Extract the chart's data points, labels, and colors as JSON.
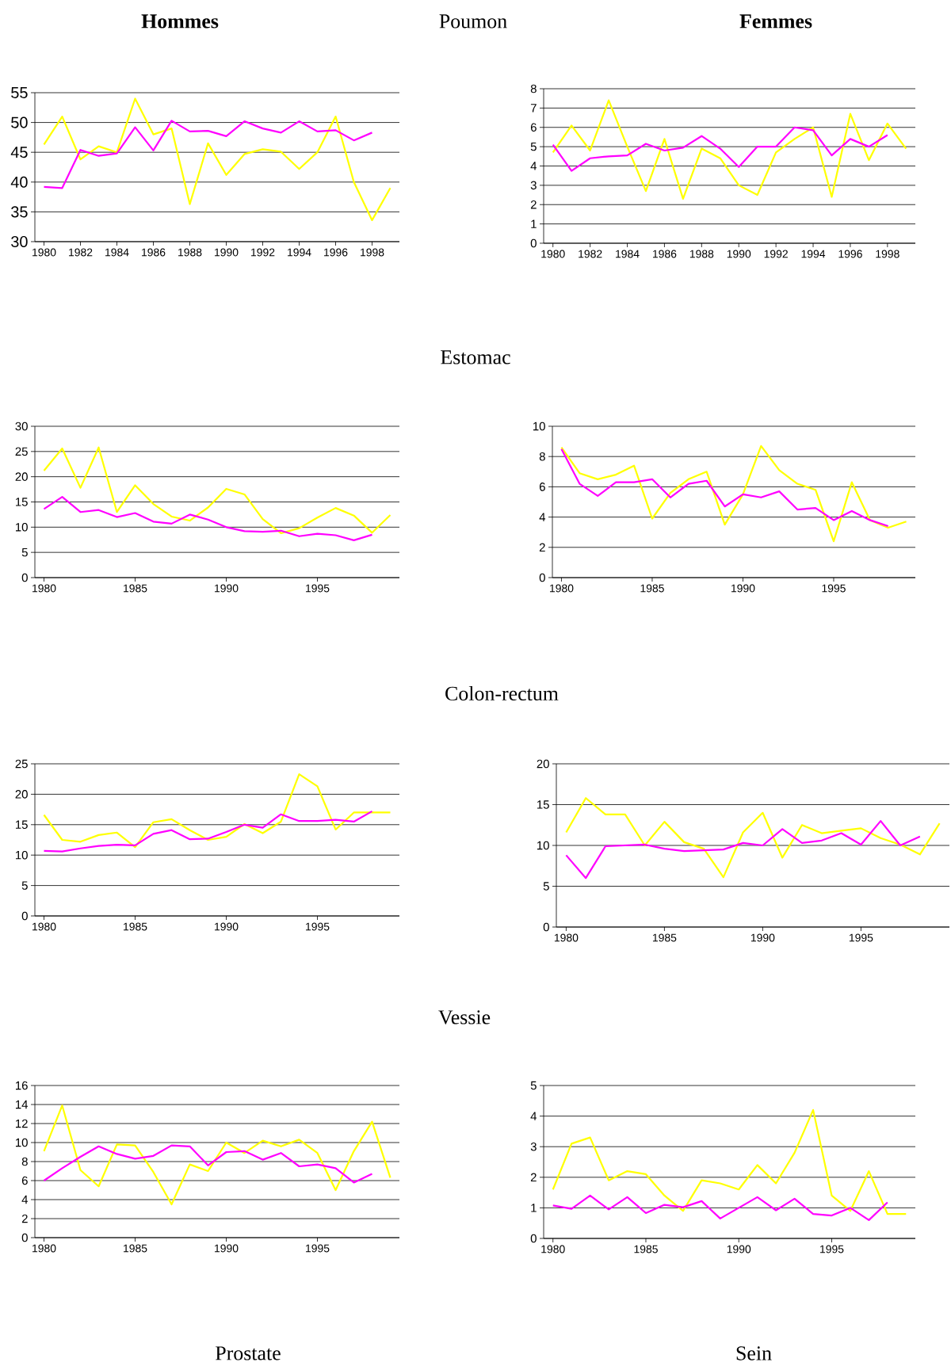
{
  "chart_data": [
    {
      "type": "line",
      "annotations": [
        "Hommes"
      ],
      "x": [
        1980,
        1981,
        1982,
        1983,
        1984,
        1985,
        1986,
        1987,
        1988,
        1989,
        1990,
        1991,
        1992,
        1993,
        1994,
        1995,
        1996,
        1997,
        1998,
        1999
      ],
      "xlim": [
        1979.5,
        1999.5
      ],
      "xticks": [
        1980,
        1982,
        1984,
        1986,
        1988,
        1990,
        1992,
        1994,
        1996,
        1998
      ],
      "ylim": [
        30,
        55
      ],
      "yticks": [
        30,
        35,
        40,
        45,
        50,
        55
      ],
      "grid": "y",
      "series": [
        {
          "color": "#ffff00",
          "values": [
            46.3,
            51,
            43.8,
            46,
            45,
            54,
            48,
            49,
            36.3,
            46.5,
            41.2,
            44.7,
            45.5,
            45.1,
            42.2,
            45,
            51,
            40,
            33.6,
            39
          ]
        },
        {
          "color": "#ff00ff",
          "values": [
            39.2,
            39,
            45.4,
            44.4,
            44.8,
            49.2,
            45.3,
            50.3,
            48.5,
            48.6,
            47.7,
            50.2,
            49,
            48.3,
            50.2,
            48.5,
            48.7,
            47,
            48.3,
            null
          ]
        }
      ]
    },
    {
      "type": "line",
      "annotations": [
        "Femmes"
      ],
      "x": [
        1980,
        1981,
        1982,
        1983,
        1984,
        1985,
        1986,
        1987,
        1988,
        1989,
        1990,
        1991,
        1992,
        1993,
        1994,
        1995,
        1996,
        1997,
        1998,
        1999
      ],
      "xlim": [
        1979.5,
        1999.5
      ],
      "xticks": [
        1980,
        1982,
        1984,
        1986,
        1988,
        1990,
        1992,
        1994,
        1996,
        1998
      ],
      "ylim": [
        0,
        8
      ],
      "yticks": [
        0,
        1,
        2,
        3,
        4,
        5,
        6,
        7,
        8
      ],
      "grid": "y",
      "series": [
        {
          "color": "#ffff00",
          "values": [
            4.7,
            6.1,
            4.8,
            7.4,
            5,
            2.7,
            5.4,
            2.3,
            4.9,
            4.4,
            3,
            2.5,
            4.7,
            5.4,
            6,
            2.4,
            6.7,
            4.3,
            6.2,
            4.9
          ]
        },
        {
          "color": "#ff00ff",
          "values": [
            5.1,
            3.75,
            4.4,
            4.5,
            4.55,
            5.15,
            4.8,
            4.95,
            5.55,
            4.9,
            3.95,
            5,
            5,
            6,
            5.85,
            4.55,
            5.4,
            5,
            5.6,
            null
          ]
        }
      ]
    },
    {
      "type": "line",
      "x": [
        1980,
        1981,
        1982,
        1983,
        1984,
        1985,
        1986,
        1987,
        1988,
        1989,
        1990,
        1991,
        1992,
        1993,
        1994,
        1995,
        1996,
        1997,
        1998,
        1999
      ],
      "xlim": [
        1979.5,
        1999.5
      ],
      "xticks": [
        1980,
        1985,
        1990,
        1995
      ],
      "ylim": [
        0,
        30
      ],
      "yticks": [
        0,
        5,
        10,
        15,
        20,
        25,
        30
      ],
      "grid": "y",
      "series": [
        {
          "color": "#ffff00",
          "values": [
            21.2,
            25.6,
            17.8,
            25.8,
            13,
            18.3,
            14.6,
            12.1,
            11.3,
            13.9,
            17.6,
            16.5,
            11.6,
            8.8,
            9.8,
            11.9,
            13.8,
            12.3,
            8.9,
            12.4
          ]
        },
        {
          "color": "#ff00ff",
          "values": [
            13.6,
            16,
            13,
            13.4,
            12,
            12.8,
            11.1,
            10.7,
            12.5,
            11.5,
            10,
            9.2,
            9.1,
            9.3,
            8.2,
            8.7,
            8.4,
            7.4,
            8.5,
            null
          ]
        }
      ]
    },
    {
      "type": "line",
      "x": [
        1980,
        1981,
        1982,
        1983,
        1984,
        1985,
        1986,
        1987,
        1988,
        1989,
        1990,
        1991,
        1992,
        1993,
        1994,
        1995,
        1996,
        1997,
        1998,
        1999
      ],
      "xlim": [
        1979.5,
        1999.5
      ],
      "xticks": [
        1980,
        1985,
        1990,
        1995
      ],
      "ylim": [
        0,
        10
      ],
      "yticks": [
        0,
        2,
        4,
        6,
        8,
        10
      ],
      "grid": "y",
      "series": [
        {
          "color": "#ffff00",
          "values": [
            8.6,
            6.9,
            6.5,
            6.8,
            7.4,
            3.9,
            5.6,
            6.5,
            7,
            3.5,
            5.5,
            8.7,
            7.1,
            6.2,
            5.8,
            2.4,
            6.3,
            3.8,
            3.3,
            3.7
          ]
        },
        {
          "color": "#ff00ff",
          "values": [
            8.5,
            6.2,
            5.4,
            6.3,
            6.3,
            6.5,
            5.3,
            6.2,
            6.4,
            4.7,
            5.5,
            5.3,
            5.7,
            4.5,
            4.6,
            3.8,
            4.4,
            3.8,
            3.4,
            null
          ]
        }
      ]
    },
    {
      "type": "line",
      "x": [
        1980,
        1981,
        1982,
        1983,
        1984,
        1985,
        1986,
        1987,
        1988,
        1989,
        1990,
        1991,
        1992,
        1993,
        1994,
        1995,
        1996,
        1997,
        1998,
        1999
      ],
      "xlim": [
        1979.5,
        1999.5
      ],
      "xticks": [
        1980,
        1985,
        1990,
        1995
      ],
      "ylim": [
        0,
        25
      ],
      "yticks": [
        0,
        5,
        10,
        15,
        20,
        25
      ],
      "grid": "y",
      "series": [
        {
          "color": "#ffff00",
          "values": [
            16.6,
            12.5,
            12.2,
            13.3,
            13.7,
            11.3,
            15.4,
            15.9,
            14.1,
            12.5,
            13,
            15.1,
            13.6,
            15.5,
            23.3,
            21.3,
            14.2,
            17,
            17,
            17
          ]
        },
        {
          "color": "#ff00ff",
          "values": [
            10.7,
            10.6,
            11.1,
            11.5,
            11.7,
            11.6,
            13.5,
            14.1,
            12.6,
            12.7,
            13.8,
            15,
            14.5,
            16.7,
            15.6,
            15.6,
            15.8,
            15.5,
            17.2,
            null
          ]
        }
      ]
    },
    {
      "type": "line",
      "x": [
        1980,
        1981,
        1982,
        1983,
        1984,
        1985,
        1986,
        1987,
        1988,
        1989,
        1990,
        1991,
        1992,
        1993,
        1994,
        1995,
        1996,
        1997,
        1998,
        1999
      ],
      "xlim": [
        1979.5,
        1999.5
      ],
      "xticks": [
        1980,
        1985,
        1990,
        1995
      ],
      "ylim": [
        0,
        20
      ],
      "yticks": [
        0,
        5,
        10,
        15,
        20
      ],
      "grid": "y",
      "series": [
        {
          "color": "#ffff00",
          "values": [
            11.6,
            15.8,
            13.8,
            13.8,
            10,
            12.9,
            10.4,
            9.6,
            6.1,
            11.6,
            14,
            8.5,
            12.5,
            11.5,
            11.8,
            12.1,
            10.9,
            10.1,
            8.9,
            12.7
          ]
        },
        {
          "color": "#ff00ff",
          "values": [
            8.8,
            6,
            9.9,
            10,
            10.1,
            9.6,
            9.3,
            9.4,
            9.5,
            10.3,
            10,
            12,
            10.3,
            10.6,
            11.5,
            10.1,
            13,
            10,
            11.1,
            null
          ]
        }
      ]
    },
    {
      "type": "line",
      "xlabel": "Prostate",
      "x": [
        1980,
        1981,
        1982,
        1983,
        1984,
        1985,
        1986,
        1987,
        1988,
        1989,
        1990,
        1991,
        1992,
        1993,
        1994,
        1995,
        1996,
        1997,
        1998,
        1999
      ],
      "xlim": [
        1979.5,
        1999.5
      ],
      "xticks": [
        1980,
        1985,
        1990,
        1995
      ],
      "ylim": [
        0,
        16
      ],
      "yticks": [
        0,
        2,
        4,
        6,
        8,
        10,
        12,
        14,
        16
      ],
      "grid": "y",
      "series": [
        {
          "color": "#ffff00",
          "values": [
            9.1,
            13.9,
            7.1,
            5.4,
            9.8,
            9.7,
            6.9,
            3.5,
            7.7,
            7,
            10,
            8.9,
            10.2,
            9.6,
            10.3,
            8.9,
            5,
            9.1,
            12.2,
            6.3
          ]
        },
        {
          "color": "#ff00ff",
          "values": [
            6,
            7.3,
            8.5,
            9.6,
            8.8,
            8.3,
            8.6,
            9.7,
            9.6,
            7.6,
            9,
            9.1,
            8.2,
            8.9,
            7.5,
            7.7,
            7.3,
            5.8,
            6.7,
            null
          ]
        }
      ]
    },
    {
      "type": "line",
      "xlabel": "Sein",
      "x": [
        1980,
        1981,
        1982,
        1983,
        1984,
        1985,
        1986,
        1987,
        1988,
        1989,
        1990,
        1991,
        1992,
        1993,
        1994,
        1995,
        1996,
        1997,
        1998,
        1999
      ],
      "xlim": [
        1979.5,
        1999.5
      ],
      "xticks": [
        1980,
        1985,
        1990,
        1995
      ],
      "ylim": [
        0,
        5
      ],
      "yticks": [
        0,
        1,
        2,
        3,
        4,
        5
      ],
      "grid": "y",
      "series": [
        {
          "color": "#ffff00",
          "values": [
            1.6,
            3.1,
            3.3,
            1.9,
            2.2,
            2.1,
            1.4,
            0.9,
            1.9,
            1.8,
            1.6,
            2.4,
            1.8,
            2.8,
            4.2,
            1.4,
            0.9,
            2.2,
            0.8,
            0.8
          ]
        },
        {
          "color": "#ff00ff",
          "values": [
            1.08,
            0.97,
            1.4,
            0.95,
            1.35,
            0.83,
            1.1,
            1.02,
            1.22,
            0.65,
            1,
            1.35,
            0.92,
            1.3,
            0.8,
            0.75,
            1,
            0.6,
            1.18,
            null
          ]
        }
      ]
    },
    {
      "type": "other",
      "annotations": [
        "Poumon",
        "Estomac",
        "Colon-rectum",
        "Vessie"
      ]
    }
  ]
}
